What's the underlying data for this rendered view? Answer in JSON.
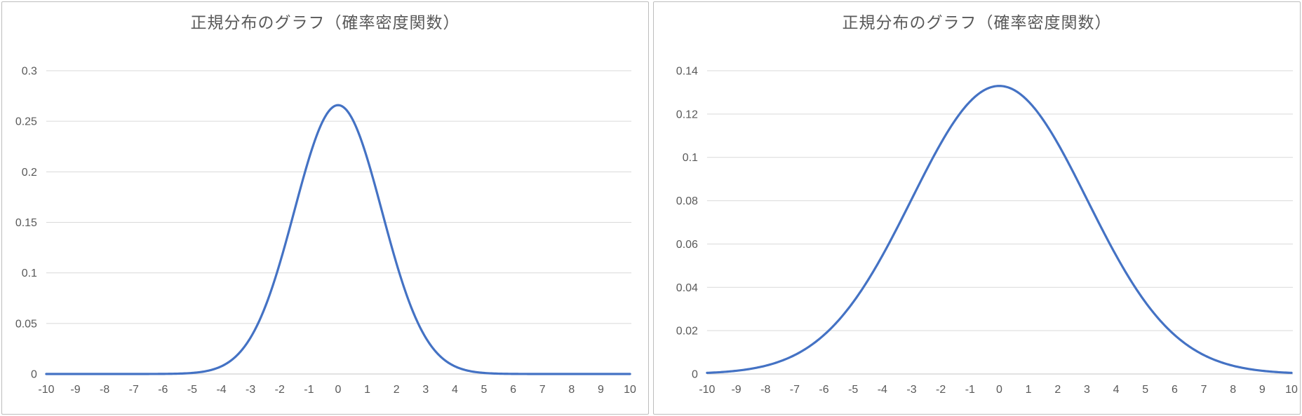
{
  "page": {
    "description": "Two normal distribution probability density function charts side by side",
    "background_color": "#ffffff",
    "panel_border_color": "#bdbdbd"
  },
  "chart_data": [
    {
      "type": "line",
      "title": "正規分布のグラフ（確率密度関数）",
      "curve": "normal_pdf",
      "mu": 0,
      "sigma": 1.5,
      "peak": {
        "x": 0,
        "y": 0.266
      },
      "xlim": [
        -10,
        10
      ],
      "ylim": [
        0,
        0.3
      ],
      "x_ticks": [
        -10,
        -9,
        -8,
        -7,
        -6,
        -5,
        -4,
        -3,
        -2,
        -1,
        0,
        1,
        2,
        3,
        4,
        5,
        6,
        7,
        8,
        9,
        10
      ],
      "x_tick_labels": [
        "-10",
        "-9",
        "-8",
        "-7",
        "-6",
        "-5",
        "-4",
        "-3",
        "-2",
        "-1",
        "0",
        "1",
        "2",
        "3",
        "4",
        "5",
        "6",
        "7",
        "8",
        "9",
        "10"
      ],
      "y_ticks": [
        0,
        0.05,
        0.1,
        0.15,
        0.2,
        0.25,
        0.3
      ],
      "y_tick_labels": [
        "0",
        "0.05",
        "0.1",
        "0.15",
        "0.2",
        "0.25",
        "0.3"
      ],
      "sample_points": {
        "x": [
          -10,
          -9,
          -8,
          -7,
          -6,
          -5,
          -4,
          -3,
          -2,
          -1,
          0,
          1,
          2,
          3,
          4,
          5,
          6,
          7,
          8,
          9,
          10
        ],
        "y": [
          0.0,
          0.0,
          0.0,
          0.0,
          0.0001,
          0.001,
          0.0076,
          0.036,
          0.1093,
          0.213,
          0.266,
          0.213,
          0.1093,
          0.036,
          0.0076,
          0.001,
          0.0001,
          0.0,
          0.0,
          0.0,
          0.0
        ]
      },
      "line_color": "#4472C4",
      "gridline_color": "#d9d9d9",
      "axis_line_color": "#d9d9d9",
      "tick_label_color": "#595959",
      "title_color": "#595959",
      "grid": true,
      "legend": false
    },
    {
      "type": "line",
      "title": "正規分布のグラフ（確率密度関数）",
      "curve": "normal_pdf",
      "mu": 0,
      "sigma": 3,
      "peak": {
        "x": 0,
        "y": 0.133
      },
      "xlim": [
        -10,
        10
      ],
      "ylim": [
        0,
        0.14
      ],
      "x_ticks": [
        -10,
        -9,
        -8,
        -7,
        -6,
        -5,
        -4,
        -3,
        -2,
        -1,
        0,
        1,
        2,
        3,
        4,
        5,
        6,
        7,
        8,
        9,
        10
      ],
      "x_tick_labels": [
        "-10",
        "-9",
        "-8",
        "-7",
        "-6",
        "-5",
        "-4",
        "-3",
        "-2",
        "-1",
        "0",
        "1",
        "2",
        "3",
        "4",
        "5",
        "6",
        "7",
        "8",
        "9",
        "10"
      ],
      "y_ticks": [
        0,
        0.02,
        0.04,
        0.06,
        0.08,
        0.1,
        0.12,
        0.14
      ],
      "y_tick_labels": [
        "0",
        "0.02",
        "0.04",
        "0.06",
        "0.08",
        "0.1",
        "0.12",
        "0.14"
      ],
      "sample_points": {
        "x": [
          -10,
          -9,
          -8,
          -7,
          -6,
          -5,
          -4,
          -3,
          -2,
          -1,
          0,
          1,
          2,
          3,
          4,
          5,
          6,
          7,
          8,
          9,
          10
        ],
        "y": [
          0.0005,
          0.0015,
          0.0038,
          0.0087,
          0.018,
          0.0332,
          0.0547,
          0.0807,
          0.1065,
          0.1258,
          0.133,
          0.1258,
          0.1065,
          0.0807,
          0.0547,
          0.0332,
          0.018,
          0.0087,
          0.0038,
          0.0015,
          0.0005
        ]
      },
      "line_color": "#4472C4",
      "gridline_color": "#d9d9d9",
      "axis_line_color": "#d9d9d9",
      "tick_label_color": "#595959",
      "title_color": "#595959",
      "grid": true,
      "legend": false
    }
  ]
}
